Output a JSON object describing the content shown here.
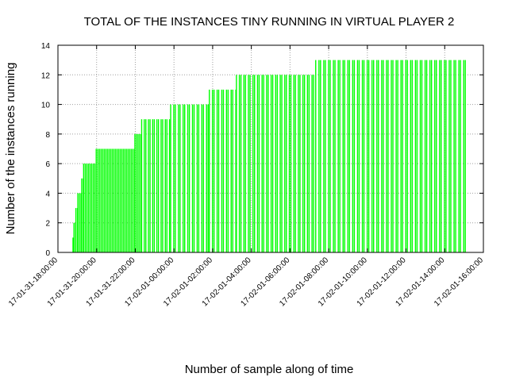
{
  "chart_data": {
    "type": "bar",
    "title": "TOTAL OF THE INSTANCES TINY RUNNING IN VIRTUAL PLAYER 2",
    "xlabel": "Number of sample along of time",
    "ylabel": "Number of the instances running",
    "ylim": [
      0,
      14
    ],
    "yticks": [
      0,
      2,
      4,
      6,
      8,
      10,
      12,
      14
    ],
    "xlim": [
      "17-01-31-18:00:00",
      "17-02-01-16:00:00"
    ],
    "xticks": [
      "17-01-31-18:00:00",
      "17-01-31-20:00:00",
      "17-01-31-22:00:00",
      "17-02-01-00:00:00",
      "17-02-01-02:00:00",
      "17-02-01-04:00:00",
      "17-02-01-06:00:00",
      "17-02-01-08:00:00",
      "17-02-01-10:00:00",
      "17-02-01-12:00:00",
      "17-02-01-14:00:00",
      "17-02-01-16:00:00"
    ],
    "x_tick_hours": [
      0,
      2,
      4,
      6,
      8,
      10,
      12,
      14,
      16,
      18,
      20,
      22
    ],
    "grid": true,
    "series": [
      {
        "color": "#00ff00",
        "segments": [
          {
            "start_hour": 0.75,
            "end_hour": 0.8,
            "value": 1,
            "gap": 0
          },
          {
            "start_hour": 0.8,
            "end_hour": 0.9,
            "value": 2,
            "gap": 0
          },
          {
            "start_hour": 0.9,
            "end_hour": 1.0,
            "value": 3,
            "gap": 0
          },
          {
            "start_hour": 1.0,
            "end_hour": 1.2,
            "value": 4,
            "gap": 0
          },
          {
            "start_hour": 1.2,
            "end_hour": 1.3,
            "value": 5,
            "gap": 0
          },
          {
            "start_hour": 1.3,
            "end_hour": 1.95,
            "value": 6,
            "gap": 0
          },
          {
            "start_hour": 1.95,
            "end_hour": 3.95,
            "value": 7,
            "gap": 0
          },
          {
            "start_hour": 3.95,
            "end_hour": 4.3,
            "value": 8,
            "gap": 0
          },
          {
            "start_hour": 4.3,
            "end_hour": 5.8,
            "value": 9,
            "gap": 0.05
          },
          {
            "start_hour": 5.8,
            "end_hour": 7.8,
            "value": 10,
            "gap": 0.15
          },
          {
            "start_hour": 7.8,
            "end_hour": 9.2,
            "value": 11,
            "gap": 0.15
          },
          {
            "start_hour": 9.2,
            "end_hour": 13.3,
            "value": 12,
            "gap": 0.12
          },
          {
            "start_hour": 13.3,
            "end_hour": 21.2,
            "value": 13,
            "gap": 0.18
          }
        ]
      }
    ]
  }
}
